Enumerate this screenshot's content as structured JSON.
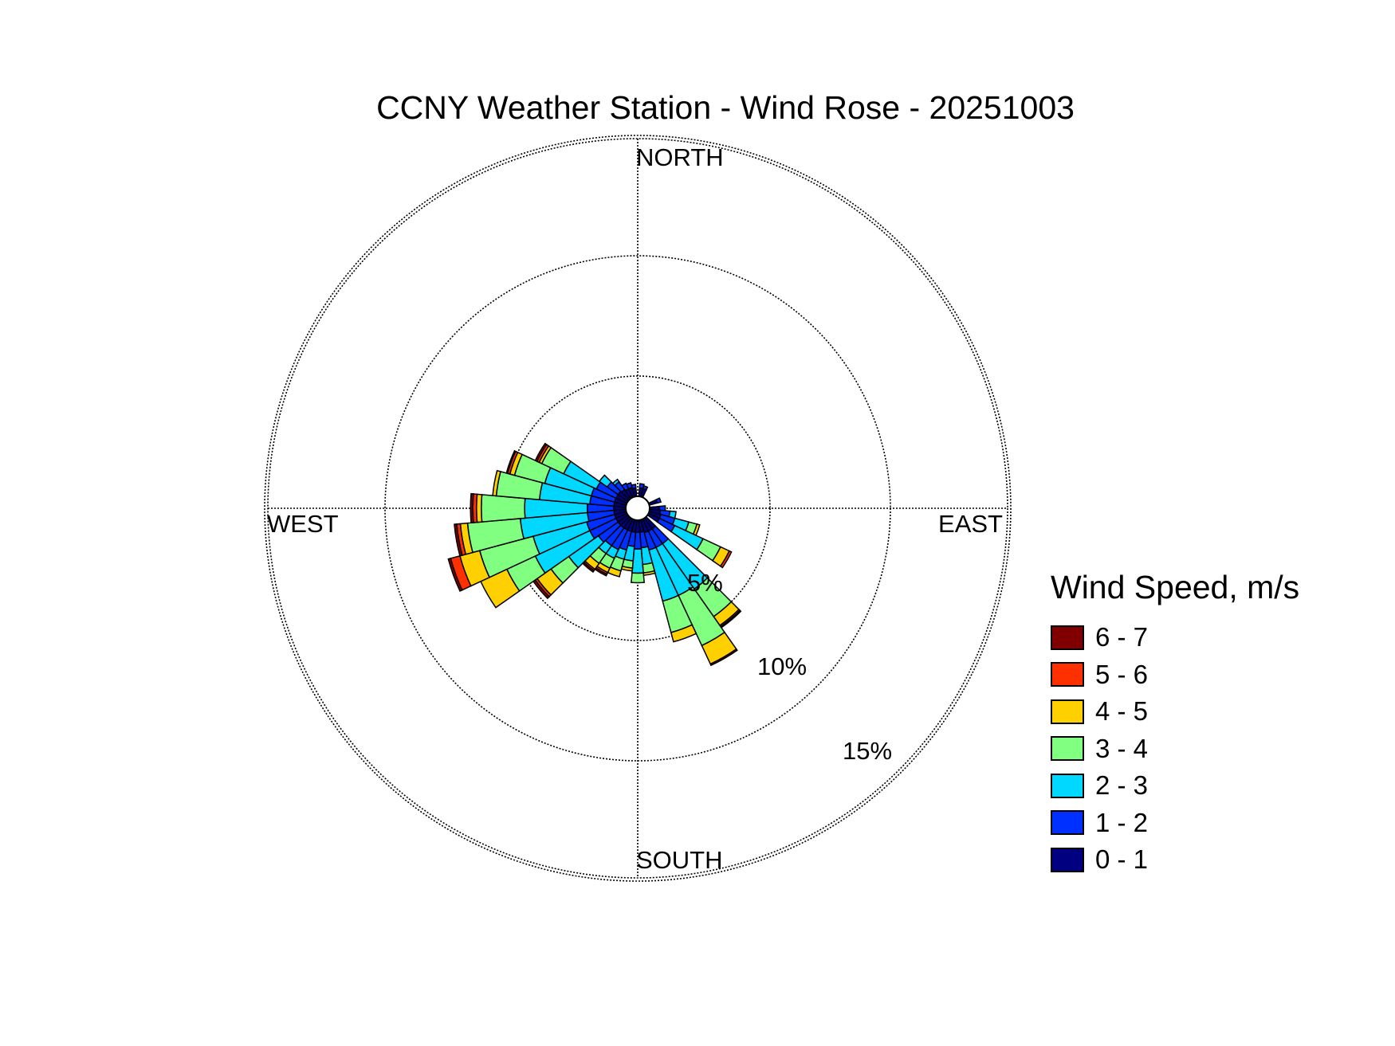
{
  "chart_data": {
    "type": "polar-stacked-bar",
    "title": "CCNY Weather Station - Wind Rose - 20251003",
    "direction_labels": {
      "north": "NORTH",
      "east": "EAST",
      "south": "SOUTH",
      "west": "WEST"
    },
    "rings": [
      {
        "value": 5,
        "label": "5%"
      },
      {
        "value": 10,
        "label": "10%"
      },
      {
        "value": 15,
        "label": "15%"
      }
    ],
    "legend_title": "Wind Speed, m/s",
    "bins": [
      {
        "label": "0 - 1",
        "color": "#000080"
      },
      {
        "label": "1 - 2",
        "color": "#0030ff"
      },
      {
        "label": "2 - 3",
        "color": "#00d8ff"
      },
      {
        "label": "3 - 4",
        "color": "#80ff80"
      },
      {
        "label": "4 - 5",
        "color": "#ffd000"
      },
      {
        "label": "5 - 6",
        "color": "#ff3000"
      },
      {
        "label": "6 - 7",
        "color": "#800000"
      }
    ],
    "sector_width_deg": 10,
    "sectors": [
      {
        "direction": 10,
        "values": [
          0.35,
          0.18,
          0.0,
          0.0,
          0.0,
          0.0,
          0.0
        ]
      },
      {
        "direction": 20,
        "values": [
          0.35,
          0.12,
          0.0,
          0.0,
          0.0,
          0.0,
          0.0
        ]
      },
      {
        "direction": 70,
        "values": [
          0.35,
          0.15,
          0.0,
          0.0,
          0.0,
          0.0,
          0.0
        ]
      },
      {
        "direction": 90,
        "values": [
          0.4,
          0.25,
          0.0,
          0.0,
          0.0,
          0.0,
          0.0
        ]
      },
      {
        "direction": 100,
        "values": [
          0.45,
          0.4,
          0.25,
          0.0,
          0.0,
          0.0,
          0.0
        ]
      },
      {
        "direction": 110,
        "values": [
          0.5,
          0.6,
          0.6,
          0.35,
          0.12,
          0.0,
          0.0
        ]
      },
      {
        "direction": 120,
        "values": [
          0.5,
          0.7,
          1.3,
          0.8,
          0.4,
          0.1,
          0.0
        ]
      },
      {
        "direction": 140,
        "values": [
          0.55,
          0.75,
          2.3,
          1.4,
          0.45,
          0.06,
          0.05
        ]
      },
      {
        "direction": 150,
        "values": [
          0.55,
          0.75,
          2.2,
          2.3,
          0.85,
          0.0,
          0.06
        ]
      },
      {
        "direction": 160,
        "values": [
          0.55,
          0.75,
          2.2,
          1.35,
          0.4,
          0.0,
          0.0
        ]
      },
      {
        "direction": 170,
        "values": [
          0.5,
          0.65,
          0.7,
          0.35,
          0.1,
          0.0,
          0.0
        ]
      },
      {
        "direction": 180,
        "values": [
          0.5,
          0.7,
          1.0,
          0.4,
          0.0,
          0.0,
          0.0
        ]
      },
      {
        "direction": 190,
        "values": [
          0.5,
          0.6,
          0.6,
          0.3,
          0.12,
          0.0,
          0.0
        ]
      },
      {
        "direction": 200,
        "values": [
          0.5,
          0.8,
          0.4,
          0.5,
          0.25,
          0.0,
          0.0
        ]
      },
      {
        "direction": 210,
        "values": [
          0.5,
          0.9,
          0.4,
          0.45,
          0.2,
          0.08,
          0.07
        ]
      },
      {
        "direction": 220,
        "values": [
          0.5,
          0.9,
          0.4,
          0.5,
          0.3,
          0.07,
          0.07
        ]
      },
      {
        "direction": 230,
        "values": [
          0.5,
          1.0,
          1.5,
          0.9,
          0.7,
          0.1,
          0.1
        ]
      },
      {
        "direction": 240,
        "values": [
          0.5,
          1.2,
          2.5,
          1.3,
          1.2,
          0.0,
          0.0
        ]
      },
      {
        "direction": 250,
        "values": [
          0.5,
          1.2,
          2.3,
          2.3,
          0.85,
          0.4,
          0.1
        ]
      },
      {
        "direction": 260,
        "values": [
          0.5,
          1.1,
          2.8,
          2.2,
          0.3,
          0.15,
          0.1
        ]
      },
      {
        "direction": 270,
        "values": [
          0.5,
          1.1,
          2.6,
          1.8,
          0.2,
          0.15,
          0.1
        ]
      },
      {
        "direction": 280,
        "values": [
          0.5,
          1.0,
          2.1,
          1.8,
          0.15,
          0.0,
          0.0
        ]
      },
      {
        "direction": 290,
        "values": [
          0.5,
          1.0,
          2.0,
          1.3,
          0.2,
          0.1,
          0.05
        ]
      },
      {
        "direction": 300,
        "values": [
          0.5,
          0.9,
          1.5,
          1.0,
          0.12,
          0.1,
          0.08
        ]
      },
      {
        "direction": 310,
        "values": [
          0.5,
          0.55,
          0.4,
          0.0,
          0.0,
          0.0,
          0.0
        ]
      },
      {
        "direction": 320,
        "values": [
          0.45,
          0.4,
          0.12,
          0.0,
          0.0,
          0.0,
          0.0
        ]
      },
      {
        "direction": 330,
        "values": [
          0.4,
          0.25,
          0.0,
          0.0,
          0.0,
          0.0,
          0.0
        ]
      },
      {
        "direction": 340,
        "values": [
          0.4,
          0.2,
          0.0,
          0.0,
          0.0,
          0.0,
          0.0
        ]
      },
      {
        "direction": 350,
        "values": [
          0.35,
          0.15,
          0.0,
          0.0,
          0.0,
          0.0,
          0.0
        ]
      }
    ]
  }
}
